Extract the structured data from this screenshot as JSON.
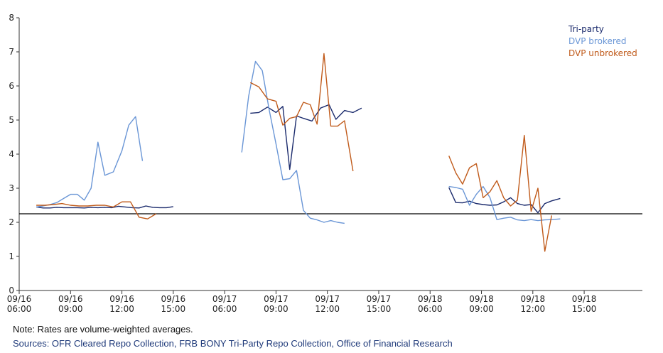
{
  "chart_data": {
    "type": "line",
    "x_tick_labels": [
      {
        "t": 0,
        "date": "09/16",
        "time": "06:00"
      },
      {
        "t": 3,
        "date": "09/16",
        "time": "09:00"
      },
      {
        "t": 6,
        "date": "09/16",
        "time": "12:00"
      },
      {
        "t": 9,
        "date": "09/16",
        "time": "15:00"
      },
      {
        "t": 12,
        "date": "09/17",
        "time": "06:00"
      },
      {
        "t": 15,
        "date": "09/17",
        "time": "09:00"
      },
      {
        "t": 18,
        "date": "09/17",
        "time": "12:00"
      },
      {
        "t": 21,
        "date": "09/17",
        "time": "15:00"
      },
      {
        "t": 24,
        "date": "09/18",
        "time": "06:00"
      },
      {
        "t": 27,
        "date": "09/18",
        "time": "09:00"
      },
      {
        "t": 30,
        "date": "09/18",
        "time": "12:00"
      },
      {
        "t": 33,
        "date": "09/18",
        "time": "15:00"
      }
    ],
    "xlim": [
      0,
      36.4
    ],
    "ylim": [
      0,
      8
    ],
    "yticks": [
      0,
      1,
      2,
      3,
      4,
      5,
      6,
      7,
      8
    ],
    "reference_line": 2.25,
    "legend_position": "top-right",
    "series": [
      {
        "name": "Tri-party",
        "color": "#1a2a6c",
        "segments": [
          [
            [
              1.0,
              2.45
            ],
            [
              1.4,
              2.42
            ],
            [
              1.8,
              2.42
            ],
            [
              2.2,
              2.44
            ],
            [
              2.6,
              2.43
            ],
            [
              3.0,
              2.43
            ],
            [
              3.4,
              2.43
            ],
            [
              3.8,
              2.42
            ],
            [
              4.2,
              2.44
            ],
            [
              4.6,
              2.43
            ],
            [
              5.0,
              2.44
            ],
            [
              5.4,
              2.43
            ],
            [
              5.8,
              2.47
            ],
            [
              6.2,
              2.45
            ],
            [
              6.6,
              2.43
            ],
            [
              7.0,
              2.42
            ],
            [
              7.4,
              2.48
            ],
            [
              7.8,
              2.44
            ],
            [
              8.2,
              2.43
            ],
            [
              8.6,
              2.43
            ],
            [
              9.0,
              2.46
            ]
          ],
          [
            [
              13.5,
              5.2
            ],
            [
              14.0,
              5.22
            ],
            [
              14.5,
              5.38
            ],
            [
              15.0,
              5.22
            ],
            [
              15.4,
              5.4
            ],
            [
              15.8,
              3.55
            ],
            [
              16.2,
              5.12
            ],
            [
              16.6,
              5.05
            ],
            [
              17.1,
              4.97
            ],
            [
              17.6,
              5.35
            ],
            [
              18.1,
              5.45
            ],
            [
              18.5,
              5.02
            ],
            [
              19.0,
              5.28
            ],
            [
              19.5,
              5.22
            ],
            [
              20.0,
              5.35
            ]
          ],
          [
            [
              25.1,
              3.02
            ],
            [
              25.5,
              2.58
            ],
            [
              25.9,
              2.57
            ],
            [
              26.3,
              2.62
            ],
            [
              26.7,
              2.55
            ],
            [
              27.1,
              2.52
            ],
            [
              27.5,
              2.5
            ],
            [
              27.9,
              2.51
            ],
            [
              28.3,
              2.6
            ],
            [
              28.7,
              2.72
            ],
            [
              29.1,
              2.55
            ],
            [
              29.5,
              2.5
            ],
            [
              29.9,
              2.52
            ],
            [
              30.3,
              2.28
            ],
            [
              30.7,
              2.55
            ],
            [
              31.1,
              2.63
            ],
            [
              31.6,
              2.7
            ]
          ]
        ]
      },
      {
        "name": "DVP brokered",
        "color": "#6a96d6",
        "segments": [
          [
            [
              1.0,
              2.45
            ],
            [
              1.4,
              2.48
            ],
            [
              1.8,
              2.52
            ],
            [
              2.2,
              2.58
            ],
            [
              2.6,
              2.7
            ],
            [
              3.0,
              2.82
            ],
            [
              3.4,
              2.82
            ],
            [
              3.8,
              2.65
            ],
            [
              4.2,
              3.0
            ],
            [
              4.6,
              4.35
            ],
            [
              5.0,
              3.38
            ],
            [
              5.5,
              3.48
            ],
            [
              6.0,
              4.1
            ],
            [
              6.4,
              4.85
            ],
            [
              6.8,
              5.1
            ],
            [
              7.2,
              3.8
            ]
          ],
          [
            [
              13.0,
              4.05
            ],
            [
              13.4,
              5.7
            ],
            [
              13.8,
              6.72
            ],
            [
              14.2,
              6.45
            ],
            [
              14.6,
              5.3
            ],
            [
              15.0,
              4.3
            ],
            [
              15.4,
              3.25
            ],
            [
              15.8,
              3.28
            ],
            [
              16.2,
              3.52
            ],
            [
              16.6,
              2.35
            ],
            [
              17.0,
              2.12
            ],
            [
              17.4,
              2.07
            ],
            [
              17.8,
              2.0
            ],
            [
              18.2,
              2.05
            ],
            [
              18.6,
              2.0
            ],
            [
              19.0,
              1.97
            ]
          ],
          [
            [
              25.1,
              3.05
            ],
            [
              25.5,
              3.02
            ],
            [
              25.9,
              2.97
            ],
            [
              26.3,
              2.5
            ],
            [
              26.7,
              2.82
            ],
            [
              27.1,
              3.05
            ],
            [
              27.5,
              2.72
            ],
            [
              27.9,
              2.08
            ],
            [
              28.3,
              2.12
            ],
            [
              28.7,
              2.15
            ],
            [
              29.1,
              2.07
            ],
            [
              29.5,
              2.05
            ],
            [
              29.9,
              2.08
            ],
            [
              30.3,
              2.05
            ],
            [
              30.7,
              2.07
            ],
            [
              31.1,
              2.08
            ],
            [
              31.6,
              2.1
            ]
          ]
        ]
      },
      {
        "name": "DVP unbrokered",
        "color": "#c05a1a",
        "segments": [
          [
            [
              1.0,
              2.5
            ],
            [
              1.5,
              2.5
            ],
            [
              2.0,
              2.52
            ],
            [
              2.5,
              2.55
            ],
            [
              3.0,
              2.5
            ],
            [
              3.5,
              2.48
            ],
            [
              4.0,
              2.48
            ],
            [
              4.5,
              2.5
            ],
            [
              5.0,
              2.5
            ],
            [
              5.5,
              2.45
            ],
            [
              6.0,
              2.6
            ],
            [
              6.5,
              2.6
            ],
            [
              7.0,
              2.15
            ],
            [
              7.5,
              2.1
            ],
            [
              8.0,
              2.25
            ]
          ],
          [
            [
              13.5,
              6.1
            ],
            [
              14.0,
              5.97
            ],
            [
              14.5,
              5.62
            ],
            [
              15.0,
              5.55
            ],
            [
              15.4,
              4.85
            ],
            [
              15.8,
              5.05
            ],
            [
              16.2,
              5.1
            ],
            [
              16.6,
              5.52
            ],
            [
              17.0,
              5.45
            ],
            [
              17.4,
              4.88
            ],
            [
              17.8,
              6.95
            ],
            [
              18.2,
              4.82
            ],
            [
              18.6,
              4.82
            ],
            [
              19.0,
              4.98
            ],
            [
              19.5,
              3.5
            ]
          ],
          [
            [
              25.1,
              3.95
            ],
            [
              25.5,
              3.45
            ],
            [
              25.9,
              3.12
            ],
            [
              26.3,
              3.6
            ],
            [
              26.7,
              3.72
            ],
            [
              27.1,
              2.72
            ],
            [
              27.5,
              2.9
            ],
            [
              27.9,
              3.22
            ],
            [
              28.3,
              2.72
            ],
            [
              28.7,
              2.48
            ],
            [
              29.1,
              2.65
            ],
            [
              29.5,
              4.55
            ],
            [
              29.9,
              2.32
            ],
            [
              30.3,
              3.0
            ],
            [
              30.7,
              1.15
            ],
            [
              31.1,
              2.2
            ]
          ]
        ]
      }
    ]
  },
  "footer": {
    "note": "Note: Rates are volume-weighted averages.",
    "sources": "Sources: OFR Cleared Repo Collection, FRB BONY Tri-Party Repo Collection, Office of Financial Research"
  }
}
